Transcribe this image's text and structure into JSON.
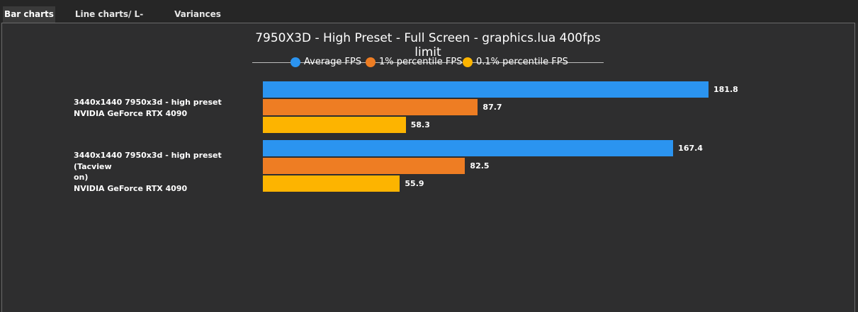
{
  "tabs": [
    {
      "label": "Bar charts",
      "active": true
    },
    {
      "label": "Line charts/ L-shapes",
      "active": false
    },
    {
      "label": "Variances",
      "active": false
    }
  ],
  "chart_data": {
    "type": "bar",
    "orientation": "horizontal",
    "title": "7950X3D - High Preset - Full Screen - graphics.lua 400fps limit",
    "legend_position": "top",
    "grid": false,
    "xlim": [
      0,
      200
    ],
    "categories": [
      {
        "line1": "3440x1440 7950x3d - high preset",
        "line2": "",
        "line3": "NVIDIA GeForce RTX 4090"
      },
      {
        "line1": "3440x1440 7950x3d - high preset (Tacview",
        "line2": "on)",
        "line3": "NVIDIA GeForce RTX 4090"
      }
    ],
    "series": [
      {
        "name": "Average FPS",
        "color": "#2b94f0",
        "values": [
          181.8,
          167.4
        ]
      },
      {
        "name": "1% percentile FPS",
        "color": "#ee7d23",
        "values": [
          87.7,
          82.5
        ]
      },
      {
        "name": "0.1% percentile FPS",
        "color": "#fdb400",
        "values": [
          58.3,
          55.9
        ]
      }
    ]
  }
}
